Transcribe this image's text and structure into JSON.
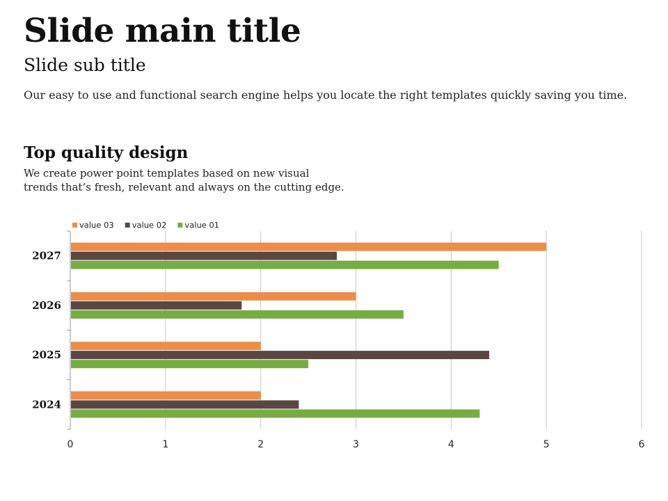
{
  "slide": {
    "title": "Slide main title",
    "subtitle": "Slide sub title",
    "intro": "Our easy to use and functional search engine  helps you locate the right templates quickly saving you time.",
    "section": {
      "heading": "Top quality design",
      "lines": [
        "We create power point templates based on new visual",
        "trends that’s fresh, relevant and always on the cutting edge."
      ]
    }
  },
  "chart_data": {
    "type": "bar",
    "orientation": "horizontal",
    "categories": [
      "2024",
      "2025",
      "2026",
      "2027"
    ],
    "series": [
      {
        "name": "value 01",
        "color": "#76ad42",
        "values": [
          4.3,
          2.5,
          3.5,
          4.5
        ]
      },
      {
        "name": "value 02",
        "color": "#5a4742",
        "values": [
          2.4,
          4.4,
          1.8,
          2.8
        ]
      },
      {
        "name": "value 03",
        "color": "#ec8d48",
        "values": [
          2.0,
          2.0,
          3.0,
          5.0
        ]
      }
    ],
    "legend_order": [
      "value 03",
      "value 02",
      "value 01"
    ],
    "xlim": [
      0,
      6
    ],
    "xticks": [
      "0",
      "1",
      "2",
      "3",
      "4",
      "5",
      "6"
    ],
    "grid": true,
    "legend_position": "top-left"
  }
}
